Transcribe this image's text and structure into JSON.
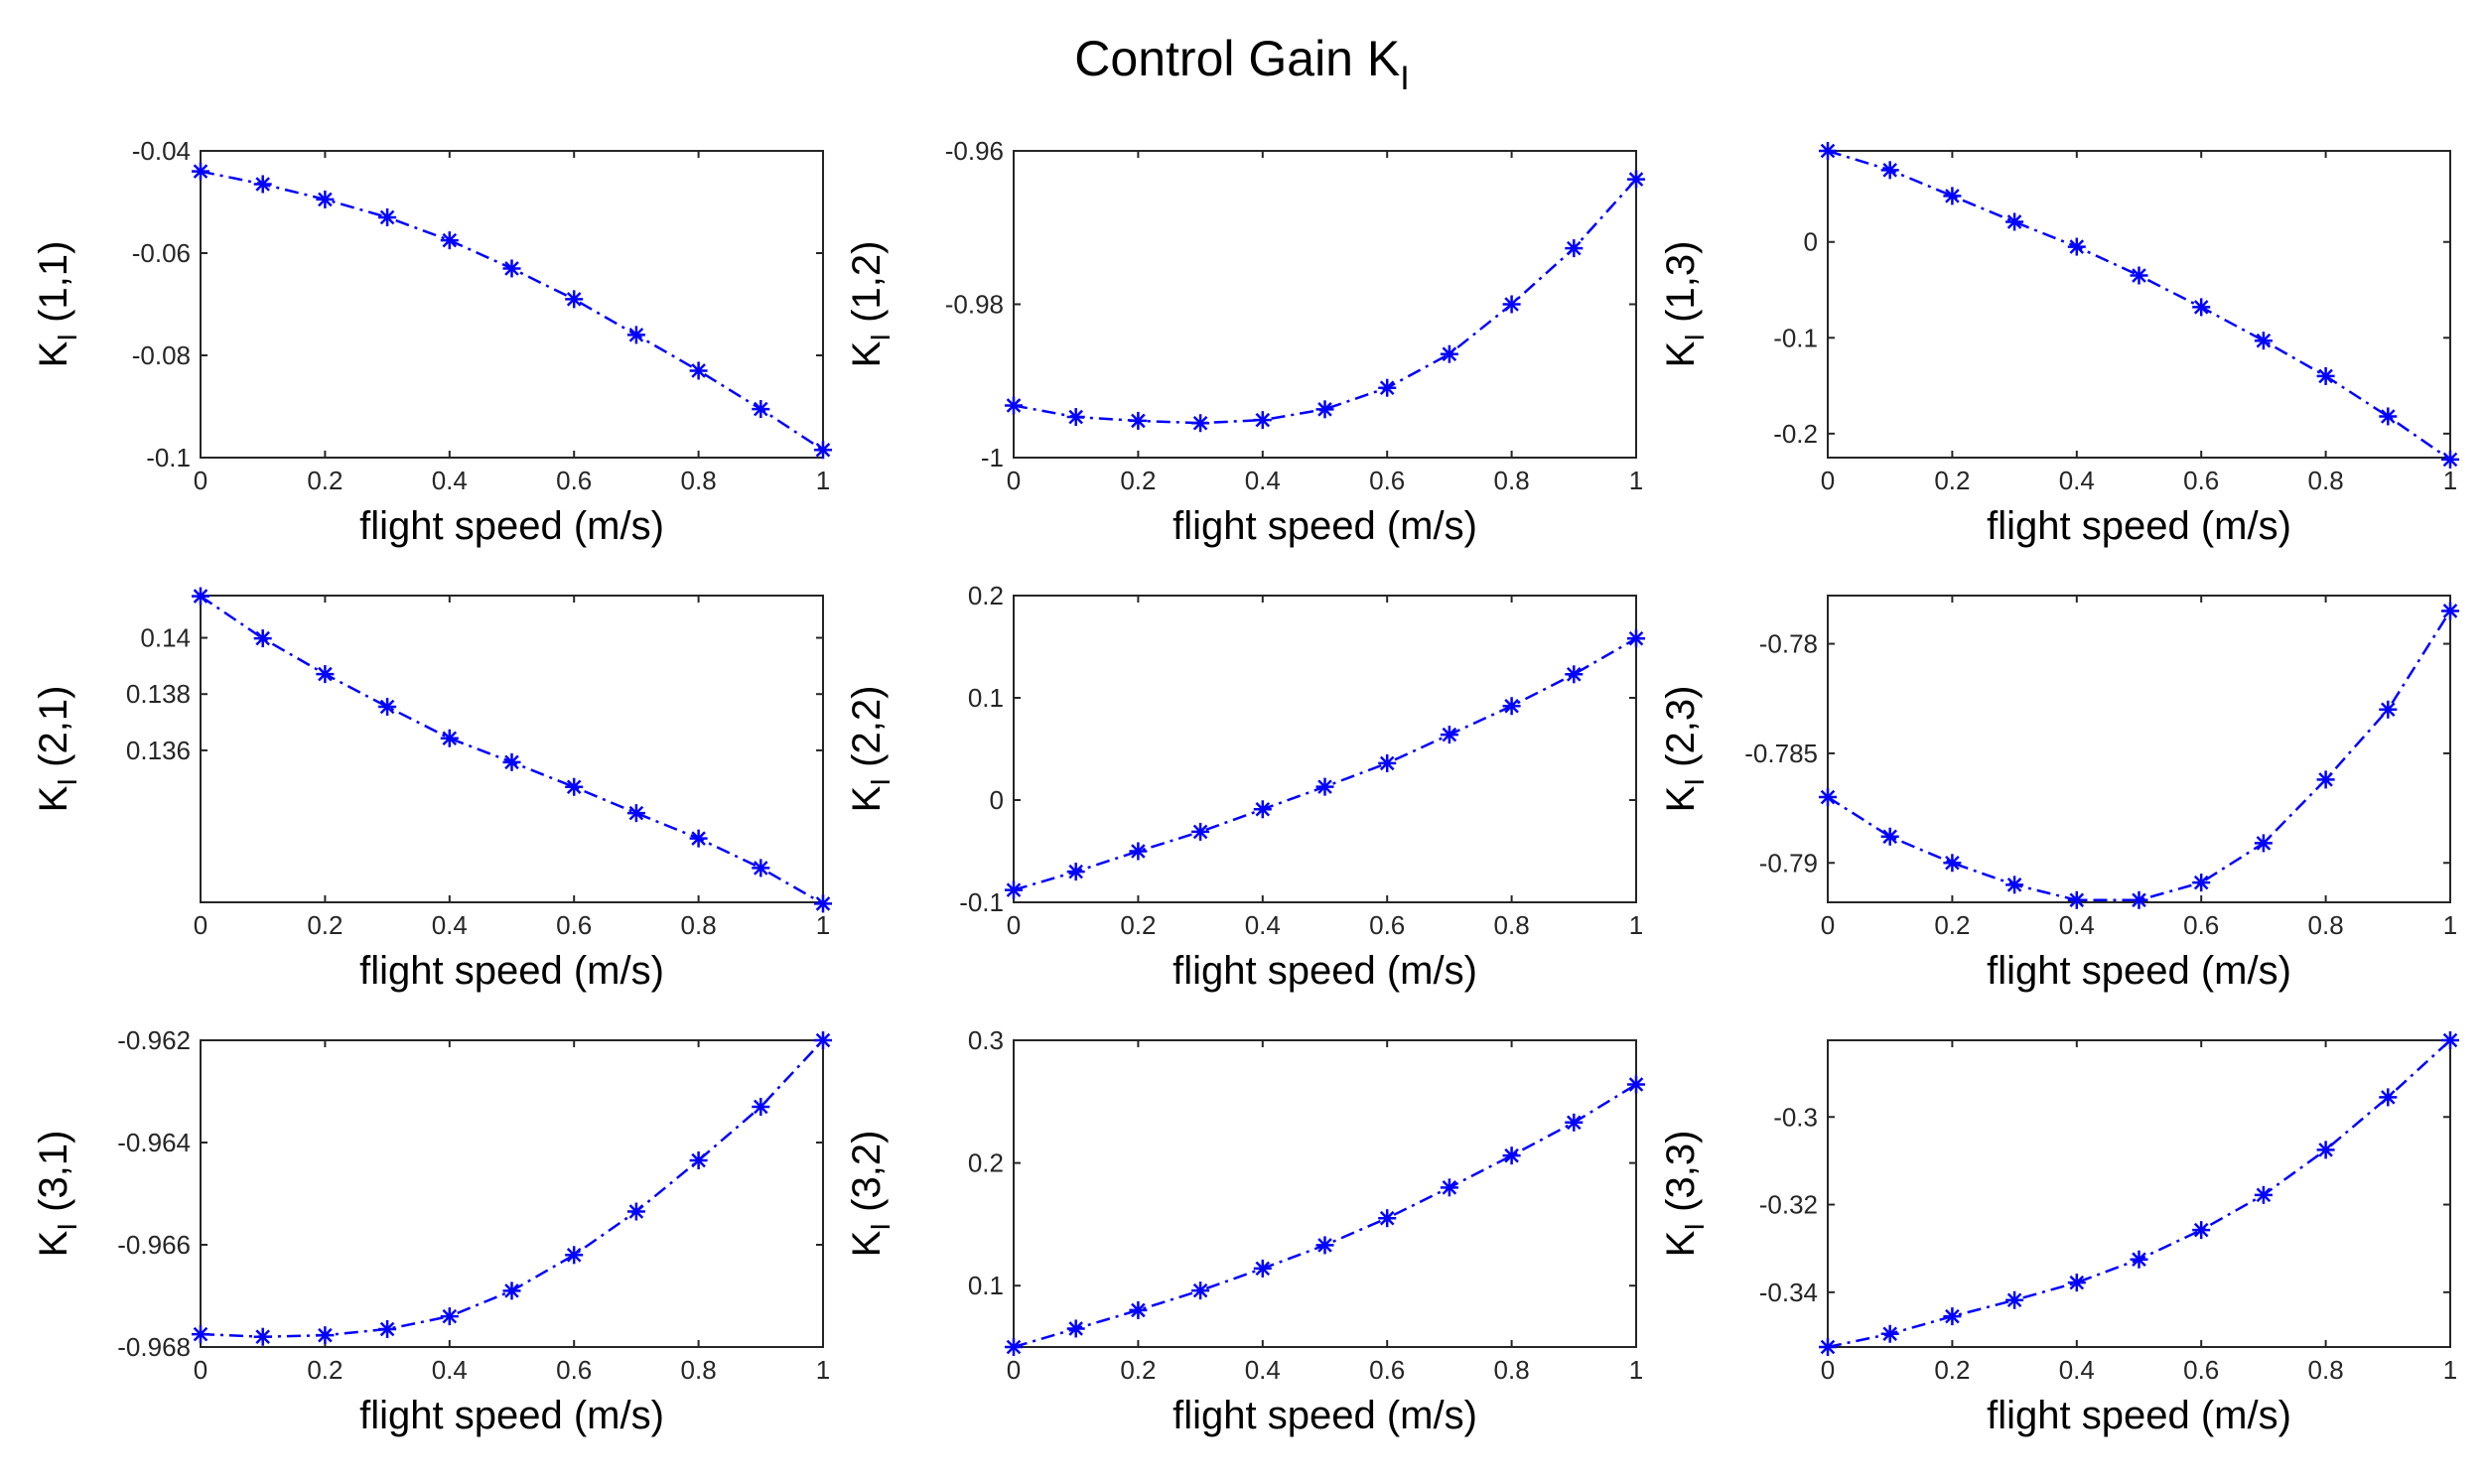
{
  "figure": {
    "title_main": "Control Gain K",
    "title_sub": "I"
  },
  "chart_data": [
    {
      "type": "line",
      "ylabel_main": "K",
      "ylabel_sub": "I",
      "ylabel_rest": " (1,1)",
      "xlabel": "flight speed (m/s)",
      "x": [
        0,
        0.1,
        0.2,
        0.3,
        0.4,
        0.5,
        0.6,
        0.7,
        0.8,
        0.9,
        1
      ],
      "values": [
        -0.044,
        -0.0465,
        -0.0495,
        -0.053,
        -0.0575,
        -0.063,
        -0.069,
        -0.076,
        -0.083,
        -0.0905,
        -0.0985
      ],
      "xlim": [
        0,
        1
      ],
      "ylim": [
        -0.1,
        -0.04
      ],
      "xticks": [
        0,
        0.2,
        0.4,
        0.6,
        0.8,
        1
      ],
      "xtick_labels": [
        "0",
        "0.2",
        "0.4",
        "0.6",
        "0.8",
        "1"
      ],
      "yticks": [
        -0.1,
        -0.08,
        -0.06,
        -0.04
      ],
      "ytick_labels": [
        "-0.1",
        "-0.08",
        "-0.06",
        "-0.04"
      ],
      "marker": "asterisk",
      "line_style": "dash-dot",
      "color": "#0000ff"
    },
    {
      "type": "line",
      "ylabel_main": "K",
      "ylabel_sub": "I",
      "ylabel_rest": " (1,2)",
      "xlabel": "flight speed (m/s)",
      "x": [
        0,
        0.1,
        0.2,
        0.3,
        0.4,
        0.5,
        0.6,
        0.7,
        0.8,
        0.9,
        1
      ],
      "values": [
        -0.9932,
        -0.9947,
        -0.9952,
        -0.9955,
        -0.9951,
        -0.9937,
        -0.9909,
        -0.9865,
        -0.98,
        -0.9727,
        -0.9637
      ],
      "xlim": [
        0,
        1
      ],
      "ylim": [
        -1,
        -0.96
      ],
      "xticks": [
        0,
        0.2,
        0.4,
        0.6,
        0.8,
        1
      ],
      "xtick_labels": [
        "0",
        "0.2",
        "0.4",
        "0.6",
        "0.8",
        "1"
      ],
      "yticks": [
        -1,
        -0.98,
        -0.96
      ],
      "ytick_labels": [
        "-1",
        "-0.98",
        "-0.96"
      ],
      "marker": "asterisk",
      "line_style": "dash-dot",
      "color": "#0000ff"
    },
    {
      "type": "line",
      "ylabel_main": "K",
      "ylabel_sub": "I",
      "ylabel_rest": " (1,3)",
      "xlabel": "flight speed (m/s)",
      "x": [
        0,
        0.1,
        0.2,
        0.3,
        0.4,
        0.5,
        0.6,
        0.7,
        0.8,
        0.9,
        1
      ],
      "values": [
        0.095,
        0.075,
        0.048,
        0.021,
        -0.005,
        -0.035,
        -0.068,
        -0.103,
        -0.14,
        -0.182,
        -0.227
      ],
      "xlim": [
        0,
        1
      ],
      "ylim": [
        -0.225,
        0.095
      ],
      "xticks": [
        0,
        0.2,
        0.4,
        0.6,
        0.8,
        1
      ],
      "xtick_labels": [
        "0",
        "0.2",
        "0.4",
        "0.6",
        "0.8",
        "1"
      ],
      "yticks": [
        -0.2,
        -0.1,
        0
      ],
      "ytick_labels": [
        "-0.2",
        "-0.1",
        "0"
      ],
      "marker": "asterisk",
      "line_style": "dash-dot",
      "color": "#0000ff"
    },
    {
      "type": "line",
      "ylabel_main": "K",
      "ylabel_sub": "I",
      "ylabel_rest": " (2,1)",
      "xlabel": "flight speed (m/s)",
      "x": [
        0,
        0.1,
        0.2,
        0.3,
        0.4,
        0.5,
        0.6,
        0.7,
        0.8,
        0.9,
        1
      ],
      "values": [
        0.14148,
        0.13998,
        0.13871,
        0.13755,
        0.13643,
        0.13558,
        0.1347,
        0.13377,
        0.13287,
        0.13182,
        0.13055
      ],
      "xlim": [
        0,
        1
      ],
      "ylim": [
        0.1306,
        0.1415
      ],
      "xticks": [
        0,
        0.2,
        0.4,
        0.6,
        0.8,
        1
      ],
      "xtick_labels": [
        "0",
        "0.2",
        "0.4",
        "0.6",
        "0.8",
        "1"
      ],
      "yticks": [
        0.136,
        0.138,
        0.14
      ],
      "ytick_labels": [
        "0.136",
        "0.138",
        "0.14"
      ],
      "marker": "asterisk",
      "line_style": "dash-dot",
      "color": "#0000ff"
    },
    {
      "type": "line",
      "ylabel_main": "K",
      "ylabel_sub": "I",
      "ylabel_rest": " (2,2)",
      "xlabel": "flight speed (m/s)",
      "x": [
        0,
        0.1,
        0.2,
        0.3,
        0.4,
        0.5,
        0.6,
        0.7,
        0.8,
        0.9,
        1
      ],
      "values": [
        -0.088,
        -0.07,
        -0.05,
        -0.031,
        -0.009,
        0.013,
        0.036,
        0.064,
        0.092,
        0.123,
        0.158
      ],
      "xlim": [
        0,
        1
      ],
      "ylim": [
        -0.1,
        0.2
      ],
      "xticks": [
        0,
        0.2,
        0.4,
        0.6,
        0.8,
        1
      ],
      "xtick_labels": [
        "0",
        "0.2",
        "0.4",
        "0.6",
        "0.8",
        "1"
      ],
      "yticks": [
        -0.1,
        0,
        0.1,
        0.2
      ],
      "ytick_labels": [
        "-0.1",
        "0",
        "0.1",
        "0.2"
      ],
      "marker": "asterisk",
      "line_style": "dash-dot",
      "color": "#0000ff"
    },
    {
      "type": "line",
      "ylabel_main": "K",
      "ylabel_sub": "I",
      "ylabel_rest": " (2,3)",
      "xlabel": "flight speed (m/s)",
      "x": [
        0,
        0.1,
        0.2,
        0.3,
        0.4,
        0.5,
        0.6,
        0.7,
        0.8,
        0.9,
        1
      ],
      "values": [
        -0.787,
        -0.7888,
        -0.79,
        -0.791,
        -0.7917,
        -0.7917,
        -0.7909,
        -0.7891,
        -0.7862,
        -0.783,
        -0.7785
      ],
      "xlim": [
        0,
        1
      ],
      "ylim": [
        -0.7918,
        -0.7778
      ],
      "xticks": [
        0,
        0.2,
        0.4,
        0.6,
        0.8,
        1
      ],
      "xtick_labels": [
        "0",
        "0.2",
        "0.4",
        "0.6",
        "0.8",
        "1"
      ],
      "yticks": [
        -0.79,
        -0.785,
        -0.78
      ],
      "ytick_labels": [
        "-0.79",
        "-0.785",
        "-0.78"
      ],
      "marker": "asterisk",
      "line_style": "dash-dot",
      "color": "#0000ff"
    },
    {
      "type": "line",
      "ylabel_main": "K",
      "ylabel_sub": "I",
      "ylabel_rest": " (3,1)",
      "xlabel": "flight speed (m/s)",
      "x": [
        0,
        0.1,
        0.2,
        0.3,
        0.4,
        0.5,
        0.6,
        0.7,
        0.8,
        0.9,
        1
      ],
      "values": [
        -0.96775,
        -0.9678,
        -0.96777,
        -0.96765,
        -0.9674,
        -0.9669,
        -0.9662,
        -0.96535,
        -0.96435,
        -0.9633,
        -0.962
      ],
      "xlim": [
        0,
        1
      ],
      "ylim": [
        -0.968,
        -0.962
      ],
      "xticks": [
        0,
        0.2,
        0.4,
        0.6,
        0.8,
        1
      ],
      "xtick_labels": [
        "0",
        "0.2",
        "0.4",
        "0.6",
        "0.8",
        "1"
      ],
      "yticks": [
        -0.968,
        -0.966,
        -0.964,
        -0.962
      ],
      "ytick_labels": [
        "-0.968",
        "-0.966",
        "-0.964",
        "-0.962"
      ],
      "marker": "asterisk",
      "line_style": "dash-dot",
      "color": "#0000ff"
    },
    {
      "type": "line",
      "ylabel_main": "K",
      "ylabel_sub": "I",
      "ylabel_rest": " (3,2)",
      "xlabel": "flight speed (m/s)",
      "x": [
        0,
        0.1,
        0.2,
        0.3,
        0.4,
        0.5,
        0.6,
        0.7,
        0.8,
        0.9,
        1
      ],
      "values": [
        0.05,
        0.065,
        0.08,
        0.096,
        0.114,
        0.133,
        0.155,
        0.18,
        0.206,
        0.233,
        0.264
      ],
      "xlim": [
        0,
        1
      ],
      "ylim": [
        0.05,
        0.3
      ],
      "xticks": [
        0,
        0.2,
        0.4,
        0.6,
        0.8,
        1
      ],
      "xtick_labels": [
        "0",
        "0.2",
        "0.4",
        "0.6",
        "0.8",
        "1"
      ],
      "yticks": [
        0.1,
        0.2,
        0.3
      ],
      "ytick_labels": [
        "0.1",
        "0.2",
        "0.3"
      ],
      "marker": "asterisk",
      "line_style": "dash-dot",
      "color": "#0000ff"
    },
    {
      "type": "line",
      "ylabel_main": "K",
      "ylabel_sub": "I",
      "ylabel_rest": " (3,3)",
      "xlabel": "flight speed (m/s)",
      "x": [
        0,
        0.1,
        0.2,
        0.3,
        0.4,
        0.5,
        0.6,
        0.7,
        0.8,
        0.9,
        1
      ],
      "values": [
        -0.3525,
        -0.3495,
        -0.3455,
        -0.3418,
        -0.3378,
        -0.3325,
        -0.3258,
        -0.3178,
        -0.3075,
        -0.2955,
        -0.2825
      ],
      "xlim": [
        0,
        1
      ],
      "ylim": [
        -0.3525,
        -0.2825
      ],
      "xticks": [
        0,
        0.2,
        0.4,
        0.6,
        0.8,
        1
      ],
      "xtick_labels": [
        "0",
        "0.2",
        "0.4",
        "0.6",
        "0.8",
        "1"
      ],
      "yticks": [
        -0.34,
        -0.32,
        -0.3
      ],
      "ytick_labels": [
        "-0.34",
        "-0.32",
        "-0.3"
      ],
      "marker": "asterisk",
      "line_style": "dash-dot",
      "color": "#0000ff"
    }
  ]
}
